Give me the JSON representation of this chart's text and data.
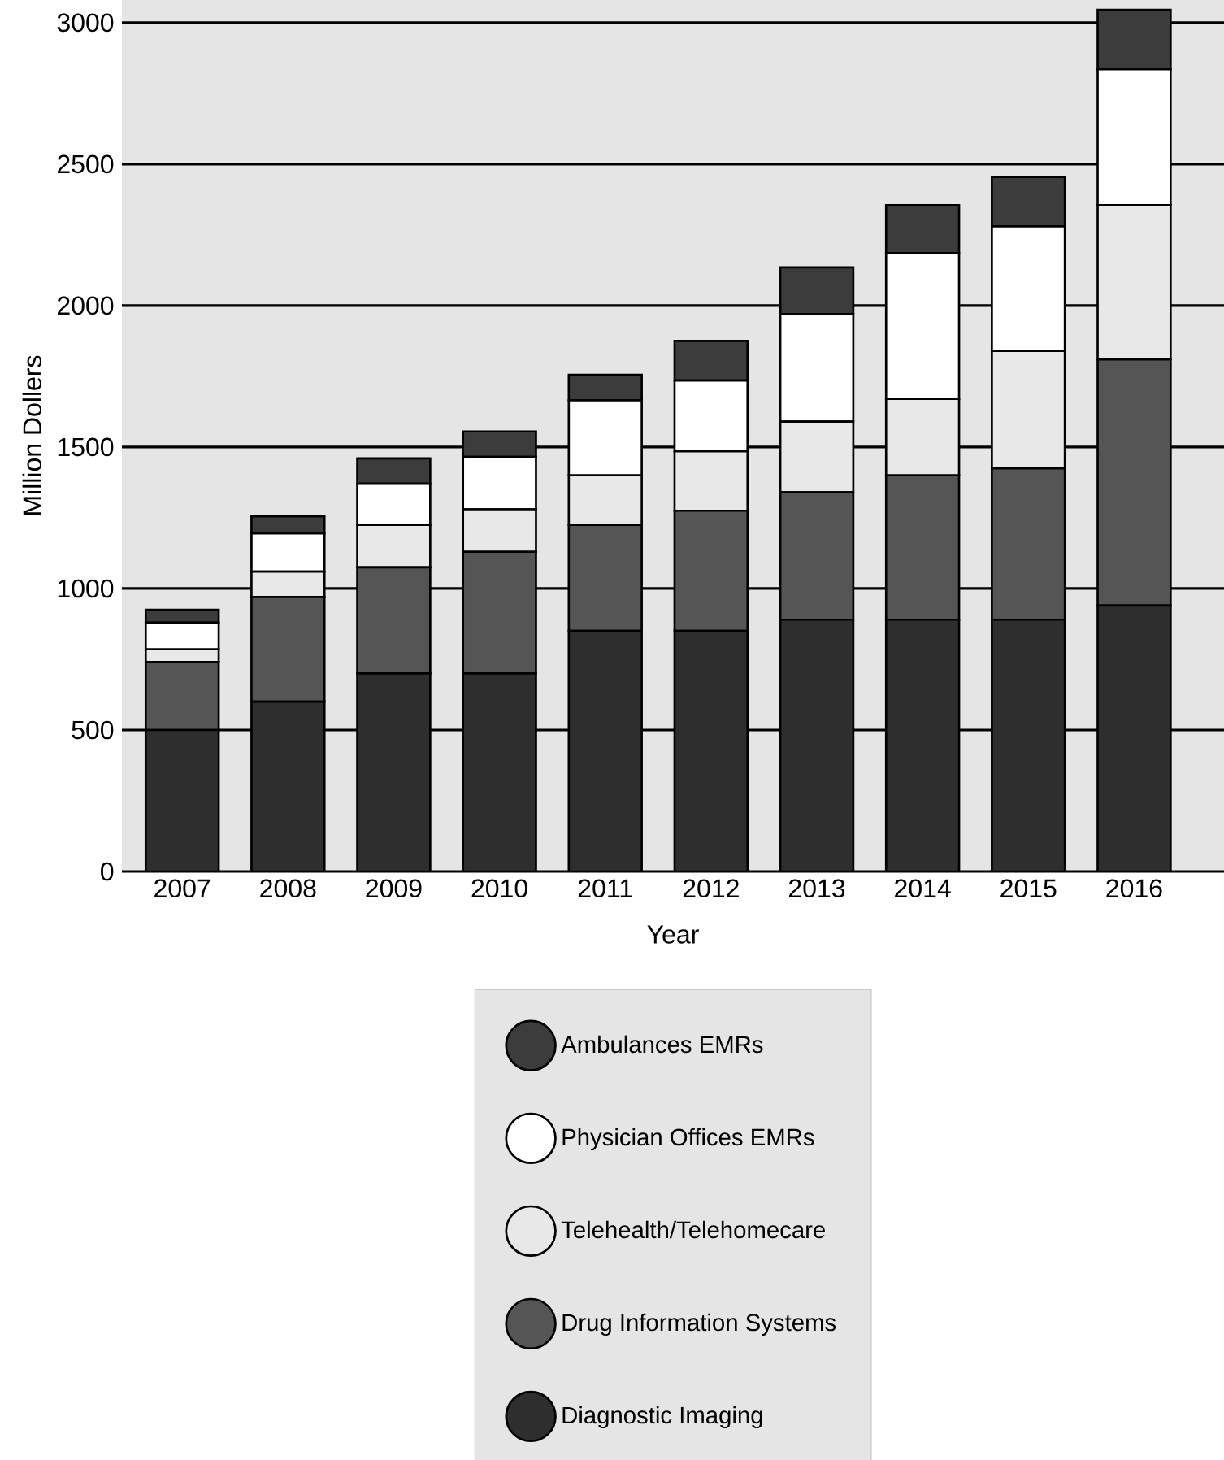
{
  "chart_data": {
    "type": "bar",
    "stacked": true,
    "xlabel": "Year",
    "ylabel": "Million Dollers",
    "categories": [
      "2007",
      "2008",
      "2009",
      "2010",
      "2011",
      "2012",
      "2013",
      "2014",
      "2015",
      "2016"
    ],
    "series": [
      {
        "name": "Diagnostic Imaging",
        "color": "#2e2e2e",
        "values": [
          500,
          600,
          700,
          700,
          850,
          850,
          890,
          890,
          890,
          940
        ]
      },
      {
        "name": "Drug Information Systems",
        "color": "#555555",
        "values": [
          240,
          370,
          375,
          430,
          375,
          425,
          450,
          510,
          535,
          870
        ]
      },
      {
        "name": "Telehealth/Telehomecare",
        "color": "#e8e8e8",
        "values": [
          45,
          90,
          150,
          150,
          175,
          210,
          250,
          270,
          415,
          545
        ]
      },
      {
        "name": "Physician Offices EMRs",
        "color": "#ffffff",
        "values": [
          95,
          135,
          145,
          185,
          265,
          250,
          380,
          515,
          440,
          480
        ]
      },
      {
        "name": "Ambulances EMRs",
        "color": "#3c3c3c",
        "values": [
          45,
          60,
          90,
          90,
          90,
          140,
          165,
          170,
          175,
          210
        ]
      }
    ],
    "ylim": [
      0,
      3080
    ],
    "yticks": [
      0,
      500,
      1000,
      1500,
      2000,
      2500,
      3000
    ],
    "grid": "y",
    "legend": "bottom"
  }
}
